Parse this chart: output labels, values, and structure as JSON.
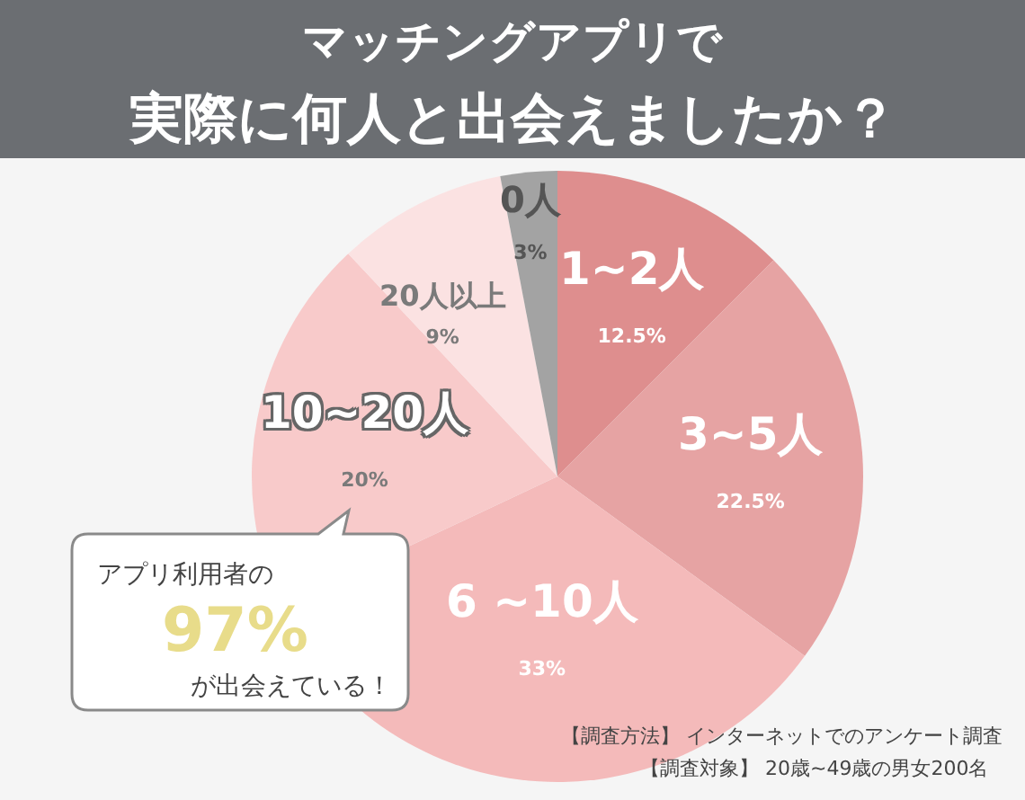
{
  "chart_data": {
    "type": "pie",
    "title": "マッチングアプリで",
    "subtitle": "実際に何人と出会えましたか？",
    "categories": [
      "1~2人",
      "3~5人",
      "6 ~10人",
      "10~20人",
      "20人以上",
      "0人"
    ],
    "values": [
      12.5,
      22.5,
      33,
      20,
      9,
      3
    ],
    "value_labels": [
      "12.5%",
      "22.5%",
      "33%",
      "20%",
      "9%",
      "3%"
    ],
    "colors": [
      "#de8e8e",
      "#e6a3a3",
      "#f4baba",
      "#f8caca",
      "#fbe2e2",
      "#a3a3a3"
    ],
    "annotations": [
      "アプリ利用者の",
      "97%",
      "が出会えている！",
      "【調査方法】 インターネットでのアンケート調査",
      "【調査対象】 20歳~49歳の男女200名"
    ]
  }
}
